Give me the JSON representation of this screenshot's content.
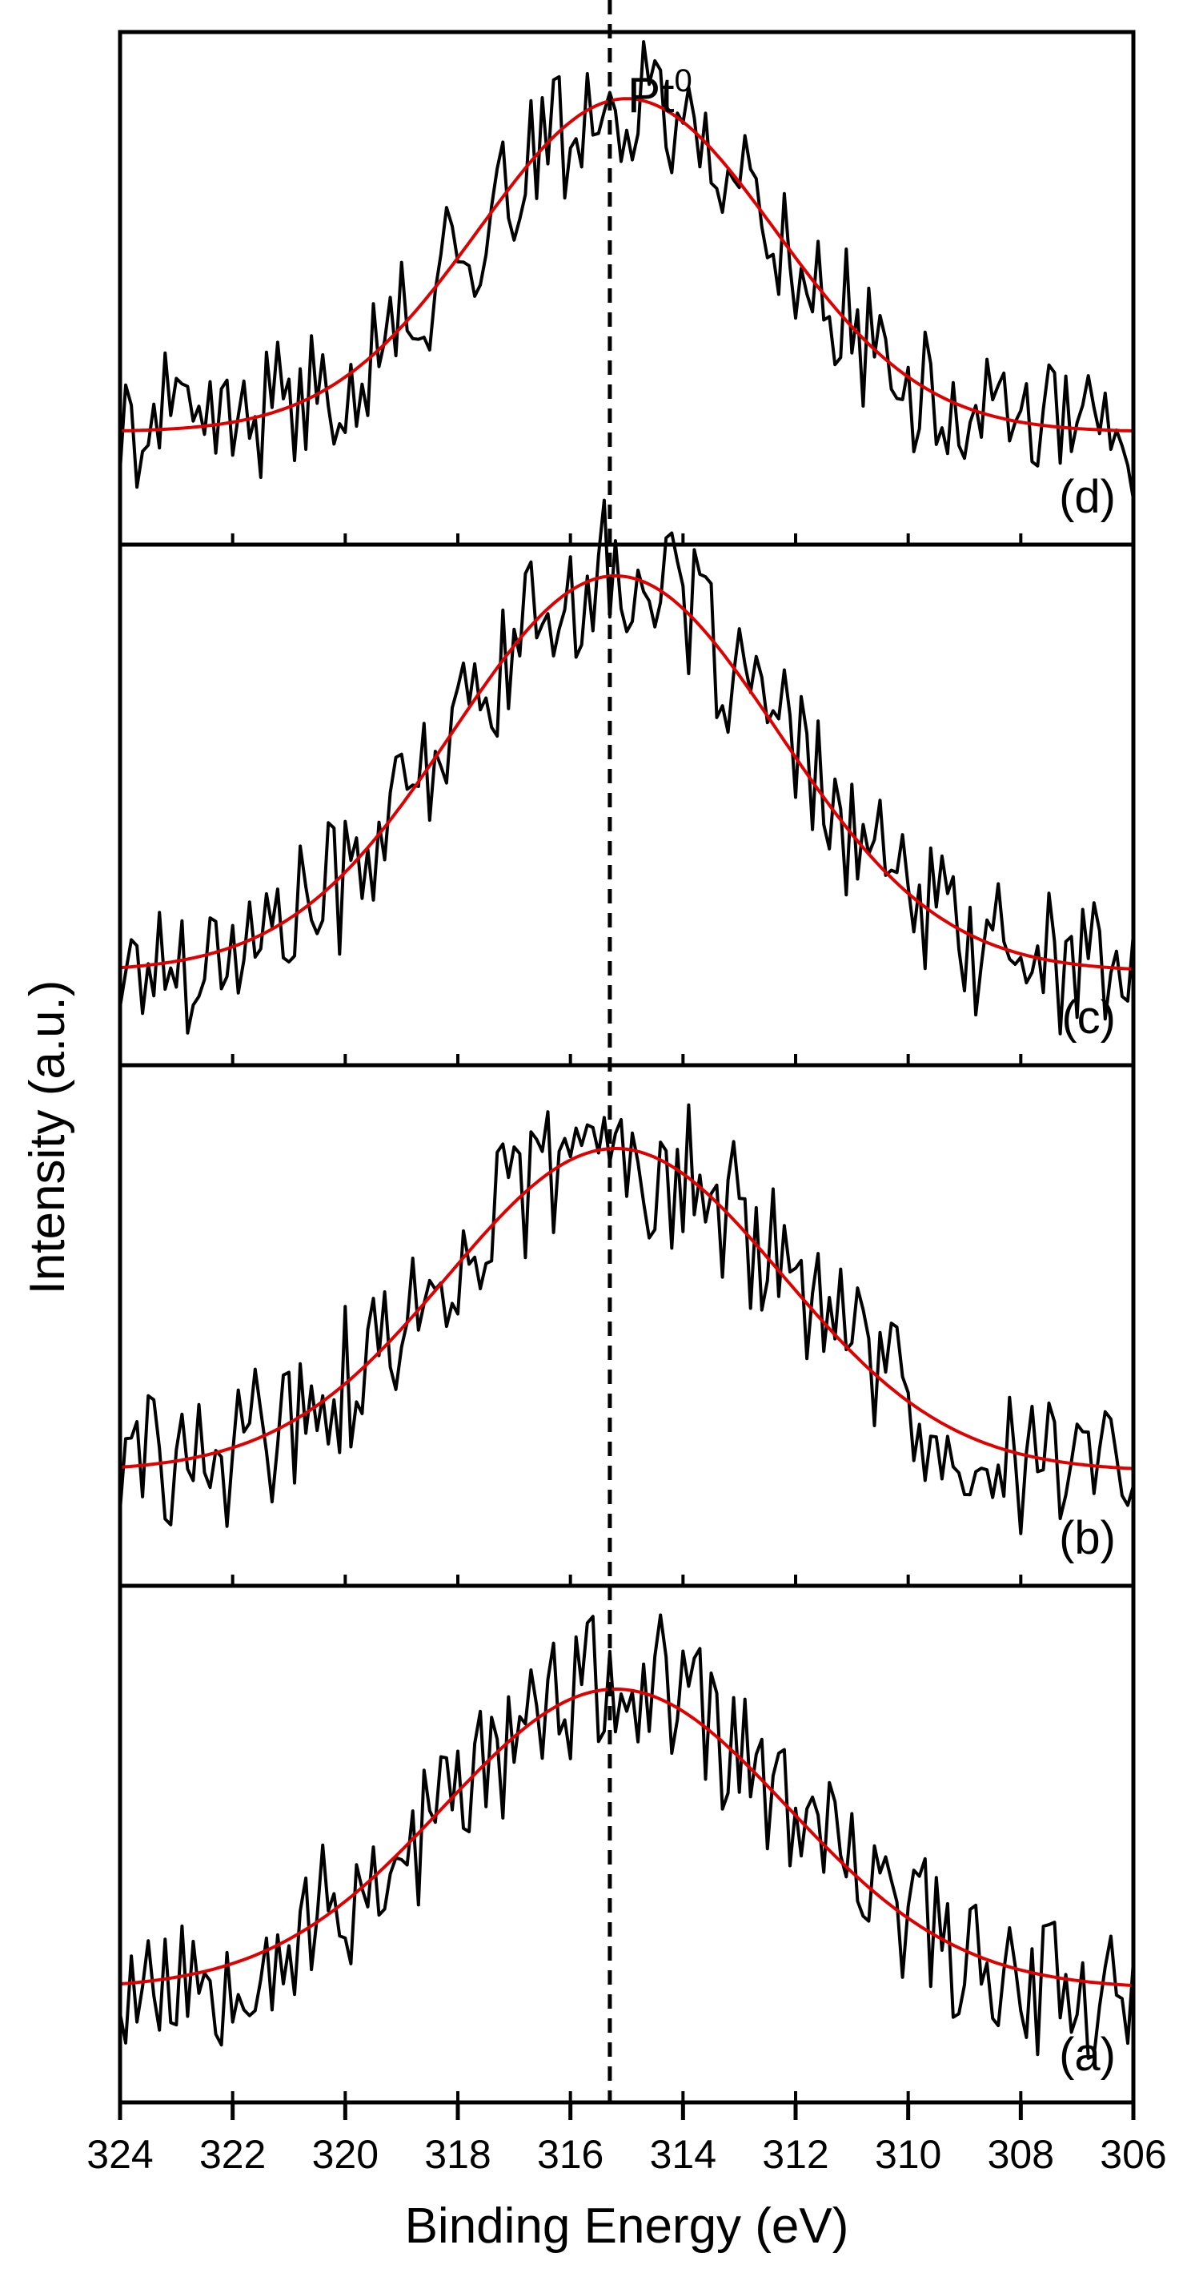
{
  "chart_data": {
    "type": "line",
    "title": "",
    "xlabel": "Binding Energy (eV)",
    "ylabel": "Intensity (a.u.)",
    "xlim": [
      324,
      306
    ],
    "x_ticks": [
      "324",
      "322",
      "320",
      "318",
      "316",
      "314",
      "312",
      "310",
      "308",
      "306"
    ],
    "x_tick_values": [
      324,
      322,
      320,
      318,
      316,
      314,
      312,
      310,
      308,
      306
    ],
    "reference_line": {
      "x": 315.3,
      "label_main": "Pt",
      "label_sup": "0",
      "style": "dashed"
    },
    "series_colors": {
      "data": "#000000",
      "fit": "#e00000"
    },
    "panels": [
      {
        "label": "(d)",
        "peak_center": 315.0,
        "fit_fwhm": 6.2,
        "fit_baseline": 0.22,
        "fit_peak": 0.65,
        "noise_amp": 0.13,
        "seed": 41
      },
      {
        "label": "(c)",
        "peak_center": 315.2,
        "fit_fwhm": 6.8,
        "fit_baseline": 0.18,
        "fit_peak": 0.76,
        "noise_amp": 0.13,
        "seed": 17
      },
      {
        "label": "(b)",
        "peak_center": 315.2,
        "fit_fwhm": 7.0,
        "fit_baseline": 0.22,
        "fit_peak": 0.62,
        "noise_amp": 0.14,
        "seed": 29
      },
      {
        "label": "(a)",
        "peak_center": 315.2,
        "fit_fwhm": 7.2,
        "fit_baseline": 0.22,
        "fit_peak": 0.58,
        "noise_amp": 0.14,
        "seed": 53
      }
    ]
  }
}
